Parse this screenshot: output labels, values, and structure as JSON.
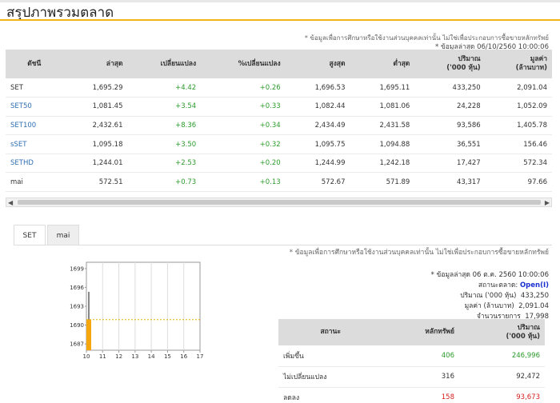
{
  "page_title": "สรุปภาพรวมตลาด",
  "notes": {
    "disclaimer": "* ข้อมูลเพื่อการศึกษาหรือใช้งานส่วนบุคคลเท่านั้น ไม่ใช่เพื่อประกอบการซื้อขายหลักทรัพย์",
    "updated": "* ข้อมูลล่าสุด 06/10/2560 10:00:06"
  },
  "market_table": {
    "headers": [
      "ดัชนี",
      "ล่าสุด",
      "เปลี่ยนแปลง",
      "%เปลี่ยนแปลง",
      "สูงสุด",
      "ต่ำสุด",
      "ปริมาณ\n('000 หุ้น)",
      "มูลค่า\n(ล้านบาท)"
    ],
    "rows": [
      {
        "name": "SET",
        "last": "1,695.29",
        "chg": "+4.42",
        "pct": "+0.26",
        "high": "1,696.53",
        "low": "1,695.11",
        "vol": "433,250",
        "val": "2,091.04"
      },
      {
        "name": "SET50",
        "last": "1,081.45",
        "chg": "+3.54",
        "pct": "+0.33",
        "high": "1,082.44",
        "low": "1,081.06",
        "vol": "24,228",
        "val": "1,052.09"
      },
      {
        "name": "SET100",
        "last": "2,432.61",
        "chg": "+8.36",
        "pct": "+0.34",
        "high": "2,434.49",
        "low": "2,431.58",
        "vol": "93,586",
        "val": "1,405.78"
      },
      {
        "name": "sSET",
        "last": "1,095.18",
        "chg": "+3.50",
        "pct": "+0.32",
        "high": "1,095.75",
        "low": "1,094.88",
        "vol": "36,551",
        "val": "156.46"
      },
      {
        "name": "SETHD",
        "last": "1,244.01",
        "chg": "+2.53",
        "pct": "+0.20",
        "high": "1,244.99",
        "low": "1,242.18",
        "vol": "17,427",
        "val": "572.34"
      },
      {
        "name": "mai",
        "last": "572.51",
        "chg": "+0.73",
        "pct": "+0.13",
        "high": "572.67",
        "low": "571.89",
        "vol": "43,317",
        "val": "97.66"
      }
    ]
  },
  "tabs": [
    {
      "label": "SET",
      "active": true
    },
    {
      "label": "mai",
      "active": false
    }
  ],
  "info": {
    "disclaimer": "* ข้อมูลเพื่อการศึกษาหรือใช้งานส่วนบุคคลเท่านั้น ไม่ใช่เพื่อประกอบการซื้อขายหลักทรัพย์",
    "updated": "* ข้อมูลล่าสุด 06 ต.ค. 2560 10:00:06",
    "status_label": "สถานะตลาด:",
    "status_value": "Open(I)",
    "volume_label": "ปริมาณ ('000 หุ้น)",
    "volume_value": "433,250",
    "value_label": "มูลค่า (ล้านบาท)",
    "value_value": "2,091.04",
    "trades_label": "จำนวนรายการ",
    "trades_value": "17,998"
  },
  "summary_table": {
    "headers": [
      "สถานะ",
      "หลักทรัพย์",
      "ปริมาณ\n('000 หุ้น)"
    ],
    "rows": [
      {
        "label": "เพิ่มขึ้น",
        "count": "406",
        "volume": "246,996",
        "color": "green"
      },
      {
        "label": "ไม่เปลี่ยนแปลง",
        "count": "316",
        "volume": "92,472",
        "color": "plain"
      },
      {
        "label": "ลดลง",
        "count": "158",
        "volume": "93,673",
        "color": "red"
      }
    ]
  },
  "chart_data": {
    "type": "bar",
    "x_ticks": [
      "10",
      "11",
      "12",
      "13",
      "14",
      "15",
      "16",
      "17"
    ],
    "y_ticks": [
      "1687",
      "1690",
      "1693",
      "1696",
      "1699"
    ],
    "ylim": [
      1686,
      1700
    ],
    "xlim": [
      10,
      17
    ],
    "reference_line": 1690.87,
    "bar": {
      "x": 10,
      "low": 1686,
      "high": 1690.9,
      "color": "#f5a70d"
    },
    "spike": {
      "x": 10,
      "low": 1690.9,
      "high": 1695.3
    },
    "colors": {
      "bar": "#f5a70d",
      "reference": "#e4b300",
      "spike": "#888888"
    }
  }
}
